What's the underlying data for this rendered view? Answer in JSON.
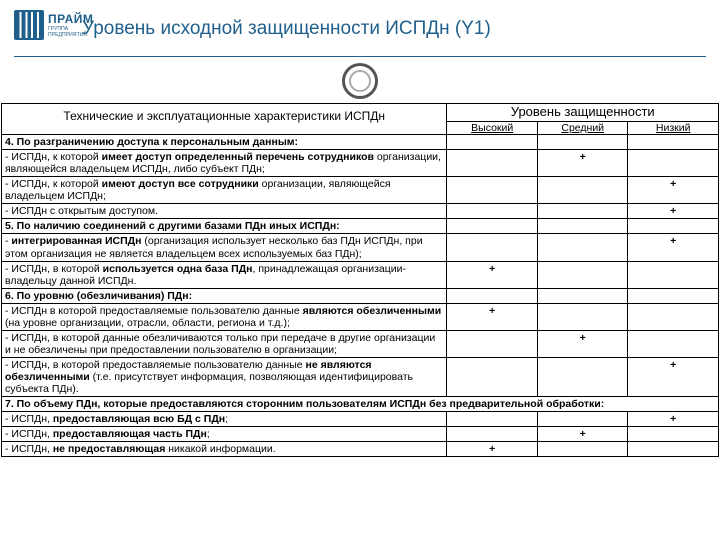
{
  "brand": {
    "name": "ПРАЙМ",
    "sub": "ГРУППА ПРЕДПРИЯТИЙ"
  },
  "title": "Уровень исходной защищенности ИСПДн (Y1)",
  "table": {
    "header": {
      "tech": "Технические и эксплуатационные характеристики ИСПДн",
      "level": "Уровень защищенности",
      "high": "Высокий",
      "med": "Средний",
      "low": "Низкий"
    },
    "rows": [
      {
        "type": "section",
        "text": "4. По разграничению доступа к персональным данным:"
      },
      {
        "type": "crit",
        "html": "- ИСПДн, к которой <b>имеет доступ определенный перечень сотрудников</b> организации, являющейся владельцем ИСПДн, либо субъект ПДн;",
        "high": "",
        "med": "+",
        "low": ""
      },
      {
        "type": "crit",
        "html": "- ИСПДн, к которой <b>имеют доступ все сотрудники</b> организации, являющейся владельцем ИСПДн;",
        "high": "",
        "med": "",
        "low": "+"
      },
      {
        "type": "crit",
        "html": "- ИСПДн с открытым доступом.",
        "high": "",
        "med": "",
        "low": "+"
      },
      {
        "type": "section",
        "text": "5. По наличию соединений с другими базами ПДн иных ИСПДн:"
      },
      {
        "type": "crit",
        "html": "- <b>интегрированная ИСПДн</b> (организация использует несколько баз ПДн ИСПДн, при этом организация не является владельцем всех используемых баз ПДн);",
        "high": "",
        "med": "",
        "low": "+"
      },
      {
        "type": "crit",
        "html": "- ИСПДн, в которой <b>используется одна база ПДн</b>, принадлежащая организации-владельцу данной ИСПДн.",
        "high": "+",
        "med": "",
        "low": ""
      },
      {
        "type": "section",
        "text": "6. По уровню (обезличивания) ПДн:"
      },
      {
        "type": "crit",
        "html": "- ИСПДн в которой предоставляемые пользователю данные <b>являются обезличенными</b> (на уровне организации, отрасли, области, региона и т.д.);",
        "high": "+",
        "med": "",
        "low": ""
      },
      {
        "type": "crit",
        "html": "- ИСПДн, в которой данные обезличиваются только при передаче в другие организации и не обезличены при предоставлении пользователю в организации;",
        "high": "",
        "med": "+",
        "low": ""
      },
      {
        "type": "crit",
        "html": "- ИСПДн, в которой предоставляемые пользователю данные <b>не являются обезличенными</b> (т.е. присутствует информация, позволяющая идентифицировать субъекта ПДн).",
        "high": "",
        "med": "",
        "low": "+"
      },
      {
        "type": "span",
        "text": "7. По объему ПДн, которые предоставляются сторонним пользователям ИСПДн без предварительной обработки:"
      },
      {
        "type": "crit",
        "html": "- ИСПДн, <b>предоставляющая всю БД с ПДн</b>;",
        "high": "",
        "med": "",
        "low": "+"
      },
      {
        "type": "crit",
        "html": "- ИСПДн, <b>предоставляющая часть ПДн</b>;",
        "high": "",
        "med": "+",
        "low": ""
      },
      {
        "type": "crit",
        "html": "- ИСПДн, <b>не предоставляющая</b> никакой информации.",
        "high": "+",
        "med": "",
        "low": ""
      }
    ]
  }
}
